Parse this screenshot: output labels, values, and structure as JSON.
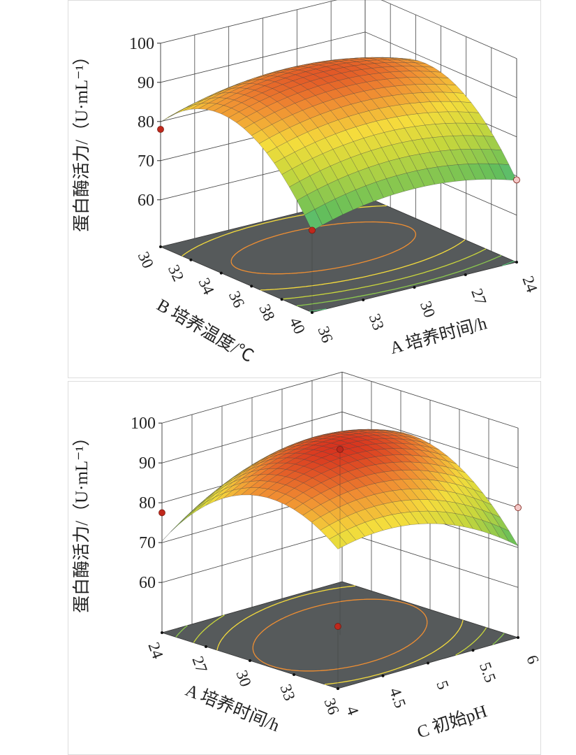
{
  "chart_data": [
    {
      "type": "surface3d",
      "zlabel": "蛋白酶活力/（U·mL⁻¹）",
      "zticks": [
        60,
        70,
        80,
        90,
        100
      ],
      "zlim": [
        48,
        100
      ],
      "u_axis": {
        "label": "B 培养温度/℃",
        "var": "B",
        "ticks": [
          30,
          32,
          34,
          36,
          38,
          40
        ],
        "range": [
          30,
          40
        ]
      },
      "v_axis": {
        "label": "A 培养时间/h",
        "var": "A",
        "ticks": [
          36,
          33,
          30,
          27,
          24
        ],
        "range": [
          36,
          24
        ]
      },
      "model": {
        "form": "z = c - a(u-u0)^2 - b(v-v0)^2 + k(u-u0)(v-v0)",
        "c": 93,
        "a": 0.55,
        "u0": 34,
        "b": 0.12,
        "v0": 30,
        "k": 0
      },
      "contour_levels": [
        60,
        65,
        70,
        75,
        80,
        85,
        90
      ],
      "design_points": [
        {
          "u": 30,
          "v": 36,
          "z": 78,
          "color": "#c0281c"
        },
        {
          "u": 40,
          "v": 36,
          "z": 69,
          "color": "#c0281c"
        },
        {
          "u": 40,
          "v": 24,
          "z": 69,
          "color": "#f4c8c8"
        }
      ]
    },
    {
      "type": "surface3d",
      "zlabel": "蛋白酶活力/（U·mL⁻¹）",
      "zticks": [
        60,
        70,
        80,
        90,
        100
      ],
      "zlim": [
        47.4,
        100
      ],
      "u_axis": {
        "label": "A 培养时间/h",
        "var": "A",
        "ticks": [
          24,
          27,
          30,
          33,
          36
        ],
        "range": [
          24,
          36
        ]
      },
      "v_axis": {
        "label": "C 初始pH",
        "var": "C",
        "ticks": [
          4.0,
          4.5,
          5.0,
          5.5,
          6.0
        ],
        "range": [
          4.0,
          6.0
        ]
      },
      "model": {
        "form": "z = c - a(u-u0)^2 - b(v-v0)^2 + k(u-u0)(v-v0)",
        "c": 95,
        "a": 0.35,
        "u0": 30,
        "b": 6,
        "v0": 5,
        "k": -1.0
      },
      "contour_levels": [
        70,
        75,
        80,
        85,
        90
      ],
      "design_points": [
        {
          "u": 24,
          "v": 4.0,
          "z": 77.5,
          "color": "#c0281c"
        },
        {
          "u": 36,
          "v": 4.0,
          "z": 63,
          "color": "#c0281c"
        },
        {
          "u": 36,
          "v": 6.0,
          "z": 80,
          "color": "#f4c8c8"
        },
        {
          "u": 30,
          "v": 5.0,
          "z": 94,
          "color": "#c0281c"
        }
      ]
    }
  ]
}
